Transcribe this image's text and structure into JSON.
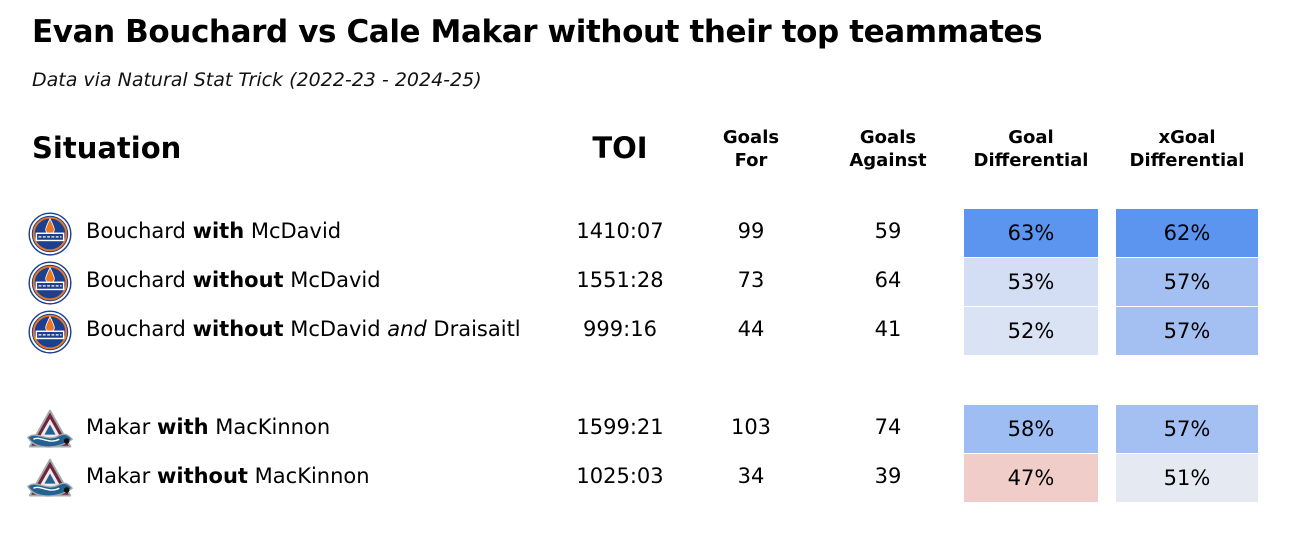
{
  "title": "Evan Bouchard vs Cale Makar without their top teammates",
  "subtitle": "Data via Natural Stat Trick (2022-23 - 2024-25)",
  "headers": {
    "situation": "Situation",
    "toi": "TOI",
    "goals_for": [
      "Goals",
      "For"
    ],
    "goals_against": [
      "Goals",
      "Against"
    ],
    "goal_diff": [
      "Goal",
      "Differential"
    ],
    "xgoal_diff": [
      "xGoal",
      "Differential"
    ]
  },
  "chart_data": {
    "type": "table",
    "columns": [
      "Situation",
      "TOI",
      "Goals For",
      "Goals Against",
      "Goal Differential",
      "xGoal Differential"
    ],
    "rows": [
      {
        "team": "oilers",
        "player": "Bouchard",
        "keyword": "with",
        "teammate": "McDavid",
        "extra": "",
        "toi": "1410:07",
        "gf": 99,
        "ga": 59,
        "gd": "63%",
        "xgd": "62%",
        "gd_color": "#5b95f0",
        "xgd_color": "#5b95f0"
      },
      {
        "team": "oilers",
        "player": "Bouchard",
        "keyword": "without",
        "teammate": "McDavid",
        "extra": "",
        "toi": "1551:28",
        "gf": 73,
        "ga": 64,
        "gd": "53%",
        "xgd": "57%",
        "gd_color": "#d3def4",
        "xgd_color": "#a4c0f2"
      },
      {
        "team": "oilers",
        "player": "Bouchard",
        "keyword": "without",
        "teammate": "McDavid",
        "extra": "Draisaitl",
        "toi": "999:16",
        "gf": 44,
        "ga": 41,
        "gd": "52%",
        "xgd": "57%",
        "gd_color": "#dae3f3",
        "xgd_color": "#a4c0f2"
      },
      {
        "team": "avalanche",
        "player": "Makar",
        "keyword": "with",
        "teammate": "MacKinnon",
        "extra": "",
        "toi": "1599:21",
        "gf": 103,
        "ga": 74,
        "gd": "58%",
        "xgd": "57%",
        "gd_color": "#9ebdf2",
        "xgd_color": "#a4c0f2"
      },
      {
        "team": "avalanche",
        "player": "Makar",
        "keyword": "without",
        "teammate": "MacKinnon",
        "extra": "",
        "toi": "1025:03",
        "gf": 34,
        "ga": 39,
        "gd": "47%",
        "xgd": "51%",
        "gd_color": "#f0cdc9",
        "xgd_color": "#e5eaf2"
      }
    ],
    "and_word": "and"
  }
}
